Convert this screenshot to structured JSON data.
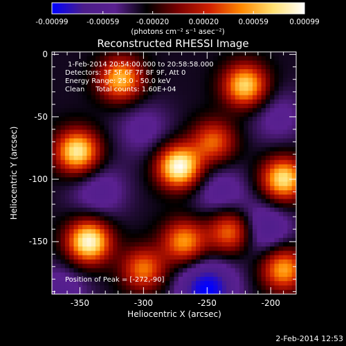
{
  "chart_data": {
    "type": "heatmap",
    "title": "Reconstructed RHESSI Image",
    "xlabel": "Heliocentric X (arcsec)",
    "ylabel": "Heliocentric Y (arcsec)",
    "xlim": [
      -372,
      -180
    ],
    "ylim": [
      -192,
      2
    ],
    "xticks": [
      -350,
      -300,
      -250,
      -200
    ],
    "yticks": [
      0,
      -50,
      -100,
      -150
    ],
    "colorbar": {
      "range": [
        -0.00099,
        0.00099
      ],
      "ticks": [
        -0.00099,
        -0.00059,
        -0.0002,
        0.0002,
        0.00059,
        0.00099
      ],
      "tick_labels": [
        "-0.00099",
        "-0.00059",
        "-0.00020",
        "0.00020",
        "0.00059",
        "0.00099"
      ],
      "unit_label": "(photons cm⁻² s⁻¹ asec⁻²)",
      "colors": [
        "#0000ff",
        "#4b1d8a",
        "#5a2090",
        "#000000",
        "#7a0000",
        "#d02000",
        "#ff8800",
        "#ffe070",
        "#ffffff"
      ]
    },
    "annotations": {
      "line1": "1-Feb-2014 20:54:00.000 to 20:58:58.000",
      "line2": "Detectors: 3F 5F 6F 7F 8F 9F, Att 0",
      "line3": "Energy Range: 25.0 - 50.0 keV",
      "line4": "Clean     Total counts: 1.60E+04",
      "peak": "Position of Peak = [-272,-90]"
    },
    "sources_positive": [
      {
        "x": -272,
        "y": -90,
        "value": 0.00099
      },
      {
        "x": -343,
        "y": -150,
        "value": 0.00095
      },
      {
        "x": -352,
        "y": -78,
        "value": 0.00085
      },
      {
        "x": -318,
        "y": -20,
        "value": 0.00065
      },
      {
        "x": -220,
        "y": -25,
        "value": 0.00075
      },
      {
        "x": -190,
        "y": -100,
        "value": 0.0008
      },
      {
        "x": -190,
        "y": -172,
        "value": 0.0006
      },
      {
        "x": -268,
        "y": -150,
        "value": 0.00055
      },
      {
        "x": -232,
        "y": -142,
        "value": 0.0005
      },
      {
        "x": -300,
        "y": -172,
        "value": 0.00045
      },
      {
        "x": -245,
        "y": -70,
        "value": 0.0004
      }
    ],
    "sources_negative": [
      {
        "x": -300,
        "y": -60,
        "value": -0.00035
      },
      {
        "x": -335,
        "y": -110,
        "value": -0.0004
      },
      {
        "x": -240,
        "y": -110,
        "value": -0.0004
      },
      {
        "x": -205,
        "y": -140,
        "value": -0.0005
      },
      {
        "x": -250,
        "y": -188,
        "value": -0.0008
      },
      {
        "x": -195,
        "y": -50,
        "value": -0.00035
      },
      {
        "x": -365,
        "y": -190,
        "value": -0.0004
      }
    ]
  },
  "timestamp": "2-Feb-2014 12:53"
}
